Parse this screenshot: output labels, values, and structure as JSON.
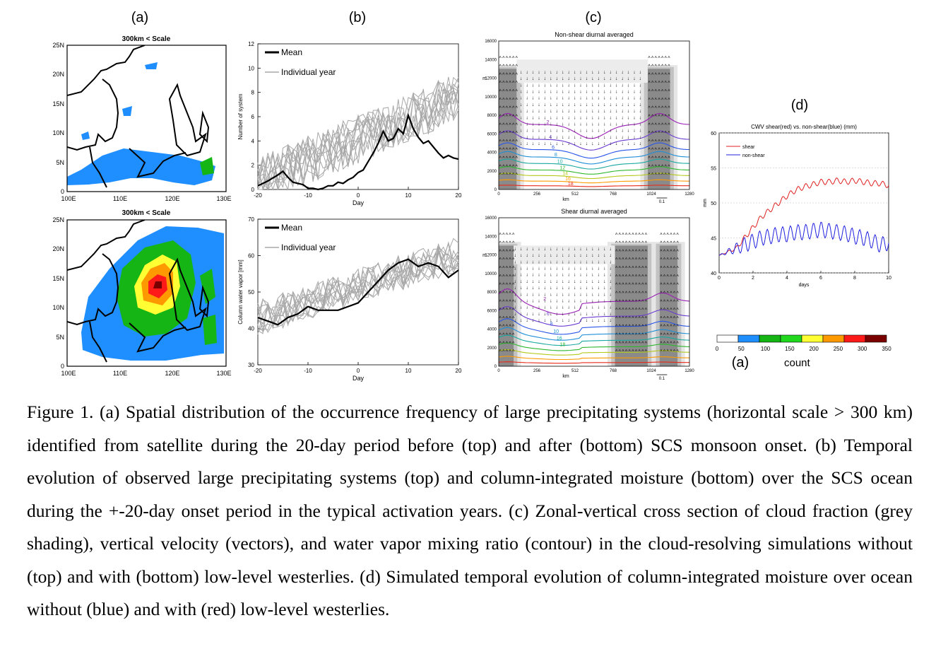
{
  "figure": {
    "panel_letters": {
      "a": "(a)",
      "b": "(b)",
      "c": "(c)",
      "d": "(d)",
      "a2": "(a)"
    },
    "caption": "Figure 1. (a) Spatial distribution of the occurrence frequency of large precipitating systems (horizontal scale > 300 km) identified from satellite during the 20-day period before (top) and after (bottom) SCS monsoon onset. (b) Temporal evolution of observed large precipitating systems (top) and column-integrated moisture (bottom) over the SCS ocean during the +-20-day onset period in the typical activation years. (c) Zonal-vertical cross section of cloud fraction (grey shading), vertical velocity (vectors), and water vapor mixing ratio (contour) in the cloud-resolving simulations without (top) and with (bottom) low-level westerlies. (d) Simulated temporal evolution of column-integrated moisture over ocean without (blue) and with (red) low-level westerlies."
  },
  "maps": {
    "title": "300km < Scale",
    "lat_ticks": [
      "25N",
      "20N",
      "15N",
      "10N",
      "5N",
      "0"
    ],
    "lon_ticks": [
      "100E",
      "110E",
      "120E",
      "130E"
    ]
  },
  "colorbar": {
    "ticks": [
      "0",
      "50",
      "100",
      "150",
      "200",
      "250",
      "300",
      "350"
    ],
    "colors": [
      "#ffffff",
      "#1f8fff",
      "#14b514",
      "#22d81f",
      "#ffff33",
      "#ff9900",
      "#ff1a1a",
      "#7a0000"
    ],
    "label": "count"
  },
  "chart_data": [
    {
      "type": "line",
      "panel": "b-top",
      "xlabel": "Day",
      "ylabel": "Number of system",
      "xlim": [
        -20,
        20
      ],
      "ylim": [
        0,
        12
      ],
      "x_ticks": [
        "-20",
        "-10",
        "0",
        "10",
        "20"
      ],
      "y_ticks": [
        "0",
        "2",
        "4",
        "6",
        "8",
        "10",
        "12"
      ],
      "legend": [
        "Mean",
        "Individual year"
      ],
      "series": [
        {
          "name": "Mean",
          "x": [
            -20,
            -18,
            -16,
            -15,
            -14,
            -13,
            -12,
            -11,
            -10,
            -9,
            -8,
            -7,
            -6,
            -5,
            -4,
            -3,
            -2,
            -1,
            0,
            1,
            2,
            3,
            4,
            5,
            6,
            7,
            8,
            9,
            10,
            11,
            12,
            13,
            14,
            15,
            16,
            17,
            18,
            19,
            20
          ],
          "values": [
            0.3,
            0.7,
            1.2,
            1.5,
            1.0,
            0.6,
            0.5,
            0.4,
            0.1,
            0.1,
            0.0,
            0.1,
            0.3,
            0.3,
            0.6,
            0.5,
            0.8,
            1.0,
            1.4,
            1.6,
            2.3,
            3.0,
            3.8,
            4.8,
            4.0,
            4.2,
            5.0,
            4.6,
            6.1,
            5.0,
            4.3,
            3.8,
            4.0,
            3.5,
            3.0,
            2.6,
            2.8,
            2.6,
            2.5
          ]
        }
      ]
    },
    {
      "type": "line",
      "panel": "b-bottom",
      "xlabel": "Day",
      "ylabel": "Column water vapor [mm]",
      "xlim": [
        -20,
        20
      ],
      "ylim": [
        30,
        70
      ],
      "x_ticks": [
        "-20",
        "-10",
        "0",
        "10",
        "20"
      ],
      "y_ticks": [
        "30",
        "40",
        "50",
        "60",
        "70"
      ],
      "legend": [
        "Mean",
        "Individual year"
      ],
      "series": [
        {
          "name": "Mean",
          "x": [
            -20,
            -18,
            -16,
            -14,
            -12,
            -10,
            -8,
            -6,
            -4,
            -2,
            0,
            2,
            4,
            6,
            8,
            10,
            12,
            14,
            16,
            18,
            20
          ],
          "values": [
            43,
            42,
            41,
            43,
            44,
            46,
            45,
            45,
            45,
            46,
            47,
            50,
            53,
            56,
            58,
            59,
            57,
            58,
            57,
            54,
            56
          ]
        }
      ]
    },
    {
      "type": "line",
      "panel": "d",
      "title": "CWV shear(red) vs. non-shear(blue) (mm)",
      "xlabel": "days",
      "ylabel": "mm",
      "xlim": [
        0,
        10
      ],
      "ylim": [
        40,
        60
      ],
      "x_ticks": [
        "0",
        "2",
        "4",
        "6",
        "8",
        "10"
      ],
      "y_ticks": [
        "40",
        "45",
        "50",
        "55",
        "60"
      ],
      "legend": [
        "shear",
        "non-shear"
      ],
      "colors": {
        "shear": "#e02020",
        "non-shear": "#2020e0"
      },
      "series": [
        {
          "name": "shear",
          "x": [
            0,
            0.5,
            1,
            1.5,
            2,
            2.5,
            3,
            3.5,
            4,
            4.5,
            5,
            5.5,
            6,
            6.5,
            7,
            7.5,
            8,
            8.5,
            9,
            9.5,
            10
          ],
          "values": [
            42.5,
            43,
            43.5,
            45,
            46.5,
            48,
            49,
            50,
            51,
            51.8,
            52.3,
            52.6,
            53,
            53,
            53.2,
            53,
            53.2,
            53,
            52.8,
            52.8,
            52.5
          ]
        },
        {
          "name": "non-shear",
          "x": [
            0,
            0.5,
            1,
            1.5,
            2,
            2.5,
            3,
            3.5,
            4,
            4.5,
            5,
            5.5,
            6,
            6.5,
            7,
            7.5,
            8,
            8.5,
            9,
            9.5,
            10
          ],
          "values": [
            42.5,
            43,
            43.5,
            44,
            44.5,
            45,
            45.2,
            45.5,
            45.5,
            45.8,
            45.8,
            46,
            46.2,
            46,
            45.8,
            45.6,
            45.2,
            45,
            44.6,
            44,
            44.3
          ]
        }
      ]
    },
    {
      "type": "heatmap",
      "panel": "c-top",
      "title": "Non-shear diurnal averaged",
      "xlabel": "km",
      "ylabel": "m",
      "x_ticks": [
        "0",
        "256",
        "512",
        "768",
        "1024",
        "1280"
      ],
      "y_ticks": [
        "0",
        "2000",
        "4000",
        "6000",
        "8000",
        "10000",
        "12000",
        "14000",
        "16000"
      ],
      "contour_labels": [
        "2",
        "4",
        "6",
        "8",
        "10",
        "12",
        "14",
        "16",
        "18"
      ],
      "vector_scale_label": "0.1"
    },
    {
      "type": "heatmap",
      "panel": "c-bottom",
      "title": "Shear diurnal averaged",
      "xlabel": "km",
      "ylabel": "m",
      "x_ticks": [
        "0",
        "256",
        "512",
        "768",
        "1024",
        "1280"
      ],
      "y_ticks": [
        "0",
        "2000",
        "4000",
        "6000",
        "8000",
        "10000",
        "12000",
        "14000",
        "16000"
      ],
      "contour_labels": [
        "2",
        "6",
        "8",
        "10",
        "16",
        "18"
      ],
      "vector_scale_label": "0.1"
    }
  ]
}
